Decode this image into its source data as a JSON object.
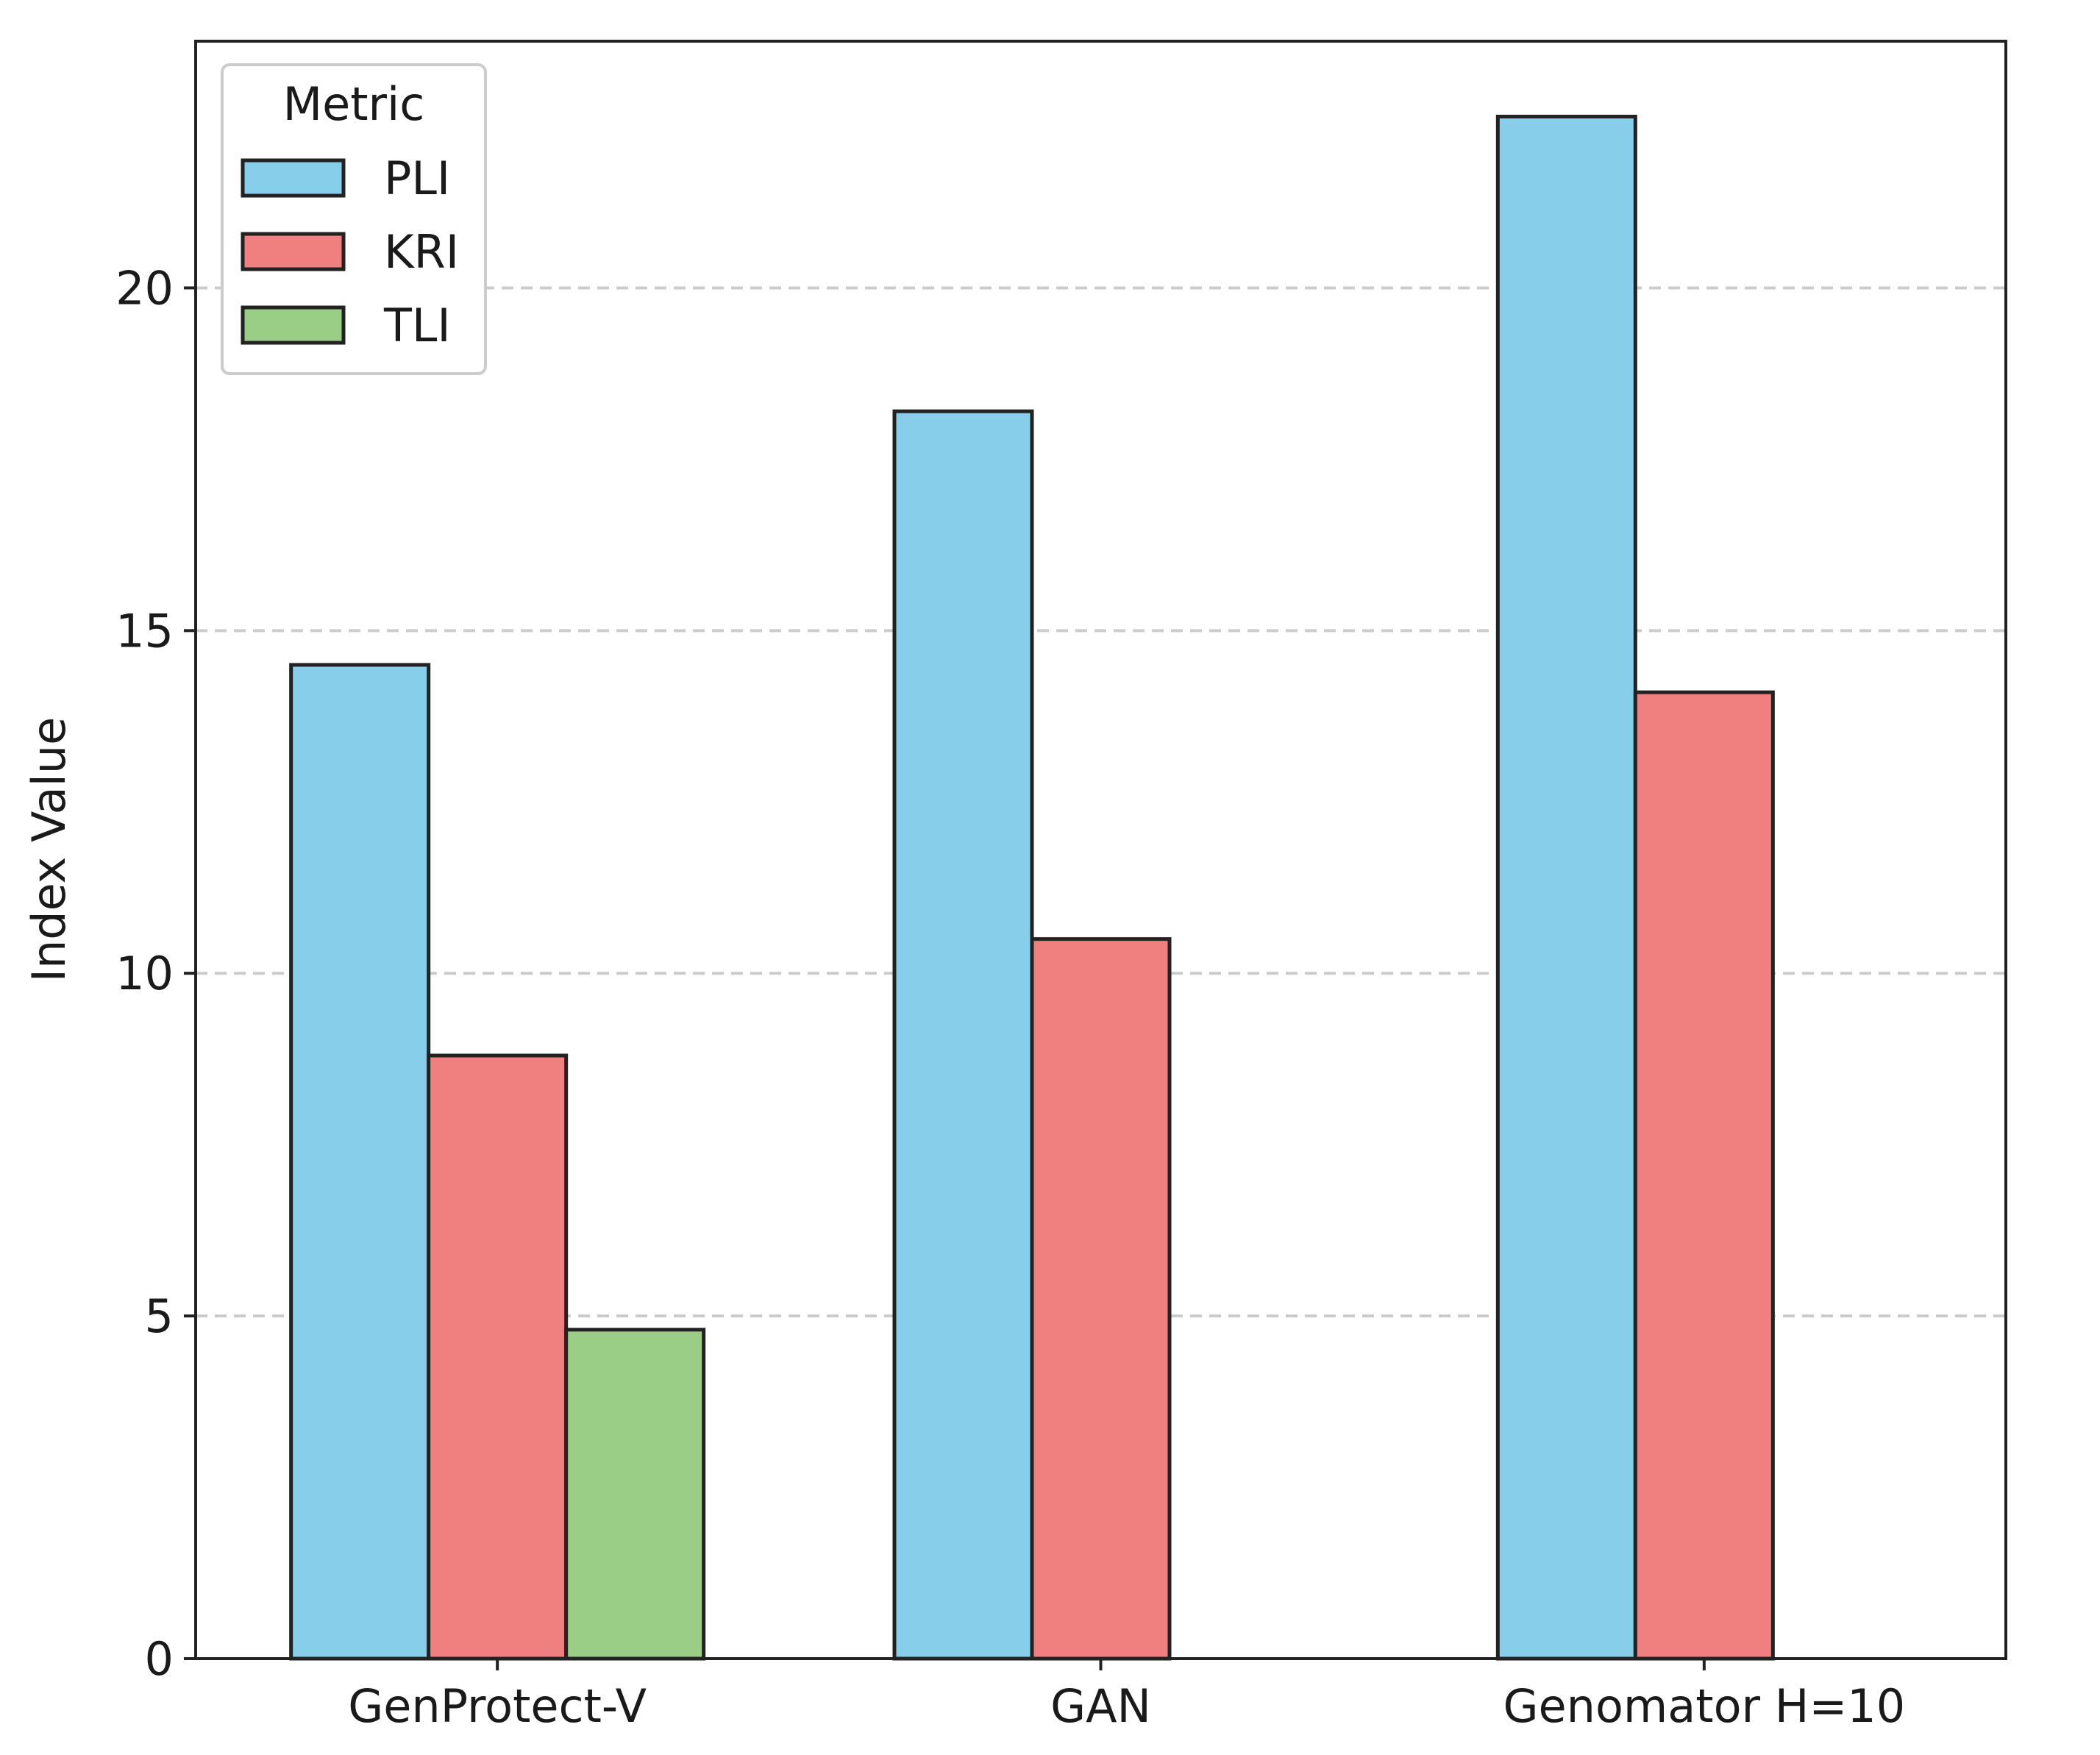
{
  "chart_data": {
    "type": "bar",
    "title": "",
    "xlabel": "",
    "ylabel": "Index Value",
    "ylim": [
      0,
      23.6
    ],
    "yticks": [
      0,
      5,
      10,
      15,
      20
    ],
    "grid": "y-dashed",
    "legend": {
      "title": "Metric",
      "placement": "top-left"
    },
    "categories": [
      "GenProtect-V",
      "GAN",
      "Genomator H=10"
    ],
    "series": [
      {
        "name": "PLI",
        "color": "#87ceeb",
        "values": [
          14.5,
          18.2,
          22.5
        ]
      },
      {
        "name": "KRI",
        "color": "#f08080",
        "values": [
          8.8,
          10.5,
          14.1
        ]
      },
      {
        "name": "TLI",
        "color": "#9acd86",
        "values": [
          4.8,
          null,
          null
        ]
      }
    ]
  }
}
